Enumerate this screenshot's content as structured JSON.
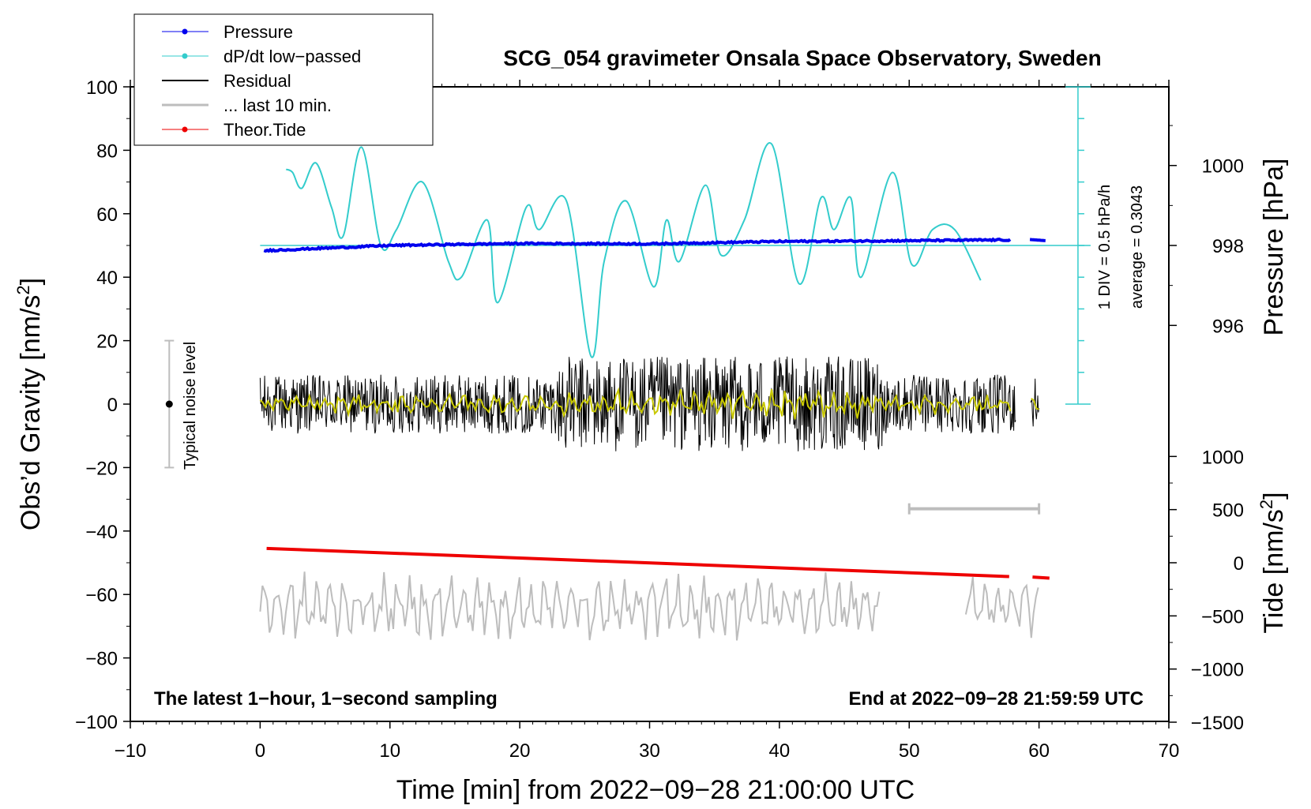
{
  "chart_data": {
    "type": "line",
    "title": "SCG_054 gravimeter Onsala Space Observatory, Sweden",
    "xlabel": "Time [min] from 2022−09−28 21:00:00 UTC",
    "ylabel_left_main": "Obs’d Gravity [nm/s",
    "ylabel_right_pressure": "Pressure [hPa]",
    "ylabel_right_tide_main": "Tide [nm/s",
    "ylabel_sup": "2",
    "ylabel_close": "]",
    "xlim": [
      -10,
      70
    ],
    "ylim_left": [
      -100,
      100
    ],
    "xticks": [
      "−10",
      "0",
      "10",
      "20",
      "30",
      "40",
      "50",
      "60",
      "70"
    ],
    "xtick_values": [
      -10,
      0,
      10,
      20,
      30,
      40,
      50,
      60,
      70
    ],
    "yticks_left": [
      "100",
      "80",
      "60",
      "40",
      "20",
      "0",
      "−20",
      "−40",
      "−60",
      "−80",
      "−100"
    ],
    "ytick_left_values": [
      100,
      80,
      60,
      40,
      20,
      0,
      -20,
      -40,
      -60,
      -80,
      -100
    ],
    "pressure_axis": {
      "ticks": [
        "1000",
        "998",
        "996"
      ],
      "tick_values": [
        1000,
        998,
        996
      ]
    },
    "tide_axis": {
      "ticks": [
        "1000",
        "500",
        "0",
        "−500",
        "−1000",
        "−1500"
      ],
      "tick_values": [
        1000,
        500,
        0,
        -500,
        -1000,
        -1500
      ]
    },
    "legend": {
      "position": "top-left",
      "entries": [
        {
          "label": "Pressure",
          "color": "#0000ee",
          "marker": "dot"
        },
        {
          "label": "dP/dt low−passed",
          "color": "#33cccc",
          "marker": "dot"
        },
        {
          "label": "Residual",
          "color": "#000000",
          "marker": "line"
        },
        {
          "label": "... last 10 min.",
          "color": "#bdbdbd",
          "marker": "line"
        },
        {
          "label": "Theor.Tide",
          "color": "#ee0000",
          "marker": "dot"
        }
      ]
    },
    "annotations": {
      "bottom_left": "The latest 1−hour, 1−second sampling",
      "bottom_right": "End at 2022−09−28 21:59:59 UTC",
      "noise_label": "Typical noise level",
      "div_label": "1 DIV = 0.5 hPa/h",
      "average_label": "average = 0.3043"
    },
    "series": [
      {
        "name": "dP/dt low−passed",
        "color": "#33cccc",
        "x": [
          2,
          2.5,
          3.2,
          4.3,
          5.5,
          6.4,
          7.8,
          9.3,
          10.5,
          12.5,
          14.5,
          15.5,
          17.5,
          18.3,
          20.5,
          21.5,
          23.6,
          25.5,
          26.5,
          28.2,
          30.3,
          31.3,
          32.3,
          34.3,
          35.5,
          37.3,
          39.4,
          41.5,
          43.2,
          44.2,
          45.5,
          46.3,
          48.7,
          50.2,
          51.8,
          53.5,
          55.5
        ],
        "values": [
          74,
          73,
          68,
          76,
          62,
          53,
          81,
          50,
          55,
          70,
          45,
          40,
          58,
          32,
          62,
          55,
          64,
          15,
          45,
          64,
          37,
          58,
          45,
          69,
          47,
          58,
          82,
          38,
          65,
          55,
          65,
          40,
          73,
          44,
          55,
          55,
          39
        ]
      },
      {
        "name": "Pressure",
        "color": "#0000ee",
        "x": [
          0.3,
          10,
          20,
          30,
          40,
          50,
          57.8,
          59.3,
          60.5
        ],
        "values": [
          997.87,
          998.0,
          998.05,
          998.04,
          998.1,
          998.12,
          998.14,
          998.15,
          998.12
        ],
        "unit": "hPa"
      },
      {
        "name": "Residual",
        "color": "#000000",
        "x_range": [
          0,
          60
        ],
        "gap": [
          58.2,
          59.3
        ],
        "values_range": [
          -17,
          19
        ]
      },
      {
        "name": "... last 10 min.",
        "color": "#bdbdbd",
        "x_range": [
          0,
          60
        ],
        "gap": [
          47.8,
          54.2
        ],
        "values_range": [
          -78,
          -50
        ]
      },
      {
        "name": "Theor.Tide",
        "color": "#ee0000",
        "x": [
          0.5,
          57.7,
          59.5,
          60.8
        ],
        "values": [
          135,
          -130,
          -135,
          -145
        ],
        "unit": "nm/s2"
      }
    ],
    "dpdt_reference_level": 50,
    "noise_bar": {
      "x": -7,
      "center": 0,
      "low": -20,
      "high": 20
    },
    "last10_bar": {
      "x_start": 50,
      "x_end": 60
    }
  }
}
